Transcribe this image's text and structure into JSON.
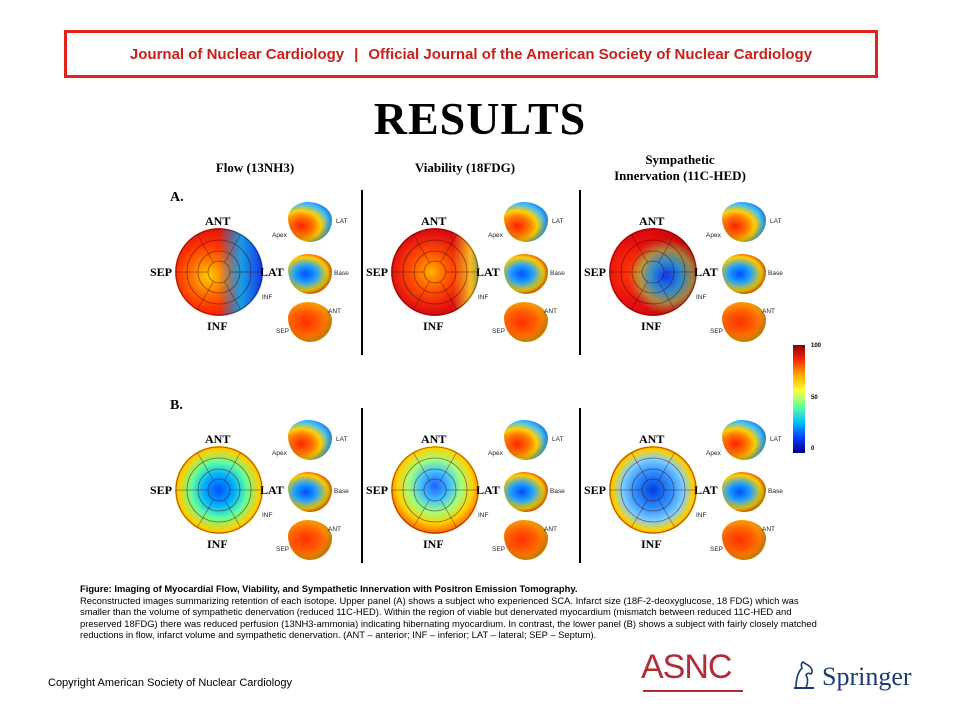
{
  "header": {
    "journal": "Journal of Nuclear Cardiology",
    "separator": "|",
    "subtitle": "Official Journal of the American Society of Nuclear Cardiology"
  },
  "title": "RESULTS",
  "columns": {
    "flow": "Flow (13NH3)",
    "viability": "Viability (18FDG)",
    "sympathetic_line1": "Sympathetic",
    "sympathetic_line2": "Innervation (11C-HED)"
  },
  "panels": {
    "a": "A.",
    "b": "B."
  },
  "orientation": {
    "ant": "ANT",
    "inf": "INF",
    "sep": "SEP",
    "lat": "LAT"
  },
  "view_labels": {
    "apex": "Apex",
    "lat": "LAT",
    "base": "Base",
    "inf": "INF",
    "ant": "ANT",
    "sep": "SEP"
  },
  "colorbar": {
    "max": "100",
    "mid": "50",
    "min": "0"
  },
  "caption": {
    "heading": "Figure: Imaging of Myocardial Flow, Viability, and Sympathetic Innervation with Positron Emission Tomography.",
    "line1": "Reconstructed images summarizing retention of each isotope. Upper panel (A) shows a subject who experienced SCA. Infarct size (18F-2-deoxyglucose, 18 FDG) which was",
    "line2": "smaller than the volume of sympathetic denervation (reduced 11C-HED). Within the region of viable but denervated myocardium (mismatch between reduced 11C-HED and",
    "line3": "preserved 18FDG) there was reduced perfusion (13NH3-ammonia) indicating hibernating myocardium. In contrast, the lower panel (B) shows a subject with fairly closely matched",
    "line4": "reductions in flow, infarct volume and sympathetic denervation. (ANT – anterior; INF – inferior; LAT – lateral; SEP – Septum)."
  },
  "footer": {
    "copyright": "Copyright American Society of Nuclear Cardiology",
    "asnc_logo": "ASNC",
    "springer_logo": "Springer"
  }
}
